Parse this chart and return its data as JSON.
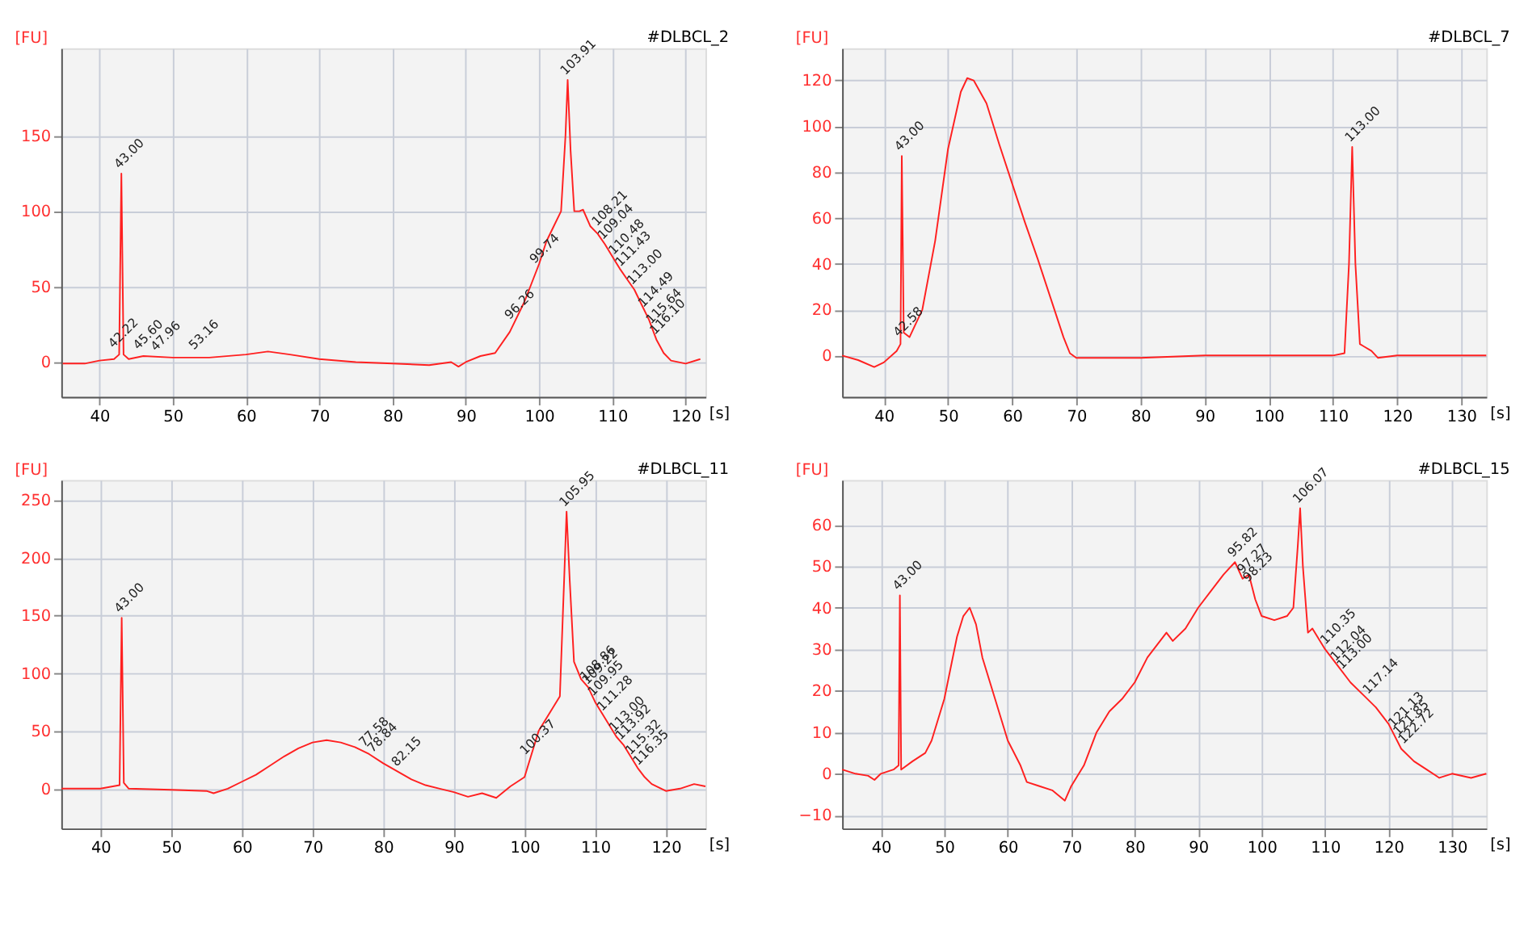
{
  "chart_data": [
    {
      "type": "line",
      "title": "#DLBCL_2",
      "xlabel": "[s]",
      "ylabel": "[FU]",
      "xlim": [
        34.8,
        122.7
      ],
      "ylim": [
        -23,
        208
      ],
      "xticks": [
        40,
        50,
        60,
        70,
        80,
        90,
        100,
        110,
        120
      ],
      "yticks": [
        0,
        50,
        100,
        150
      ],
      "grid": true,
      "x": [
        35,
        38,
        40,
        42,
        42.7,
        43,
        43.3,
        44,
        46,
        50,
        55,
        60,
        63,
        66,
        70,
        75,
        80,
        85,
        88,
        89,
        90,
        92,
        94,
        96,
        98,
        100,
        101,
        102,
        103,
        103.6,
        103.9,
        104.3,
        104.8,
        105.5,
        106,
        107,
        108,
        109,
        110,
        111,
        112,
        113,
        114,
        115,
        116,
        117,
        118,
        120,
        122
      ],
      "series": [
        {
          "color": "#ff2020",
          "values": [
            -1,
            -1,
            1,
            2,
            5,
            125,
            5,
            2,
            4,
            3,
            3,
            5,
            7,
            5,
            2,
            0,
            -1,
            -2,
            0,
            -3,
            0,
            4,
            6,
            20,
            40,
            65,
            80,
            90,
            100,
            150,
            187,
            140,
            100,
            100,
            101,
            90,
            85,
            78,
            70,
            62,
            55,
            48,
            38,
            28,
            15,
            6,
            1,
            -1,
            2
          ]
        }
      ],
      "annotations": [
        {
          "text": "43.00",
          "x": 43,
          "y": 125
        },
        {
          "text": "42.22",
          "x": 42.2,
          "y": 6
        },
        {
          "text": "45.60",
          "x": 45.6,
          "y": 5
        },
        {
          "text": "47.96",
          "x": 48,
          "y": 4
        },
        {
          "text": "53.16",
          "x": 53.2,
          "y": 5
        },
        {
          "text": "96.26",
          "x": 96.3,
          "y": 25
        },
        {
          "text": "99.74",
          "x": 99.7,
          "y": 62
        },
        {
          "text": "103.91",
          "x": 103.9,
          "y": 187
        },
        {
          "text": "108.21",
          "x": 108.2,
          "y": 87
        },
        {
          "text": "109.04",
          "x": 109,
          "y": 78
        },
        {
          "text": "110.48",
          "x": 110.5,
          "y": 68
        },
        {
          "text": "111.43",
          "x": 111.4,
          "y": 60
        },
        {
          "text": "113.00",
          "x": 113,
          "y": 48
        },
        {
          "text": "114.49",
          "x": 114.5,
          "y": 33
        },
        {
          "text": "115.64",
          "x": 115.6,
          "y": 22
        },
        {
          "text": "116.10",
          "x": 116.1,
          "y": 15
        }
      ]
    },
    {
      "type": "line",
      "title": "#DLBCL_7",
      "xlabel": "[s]",
      "ylabel": "[FU]",
      "xlim": [
        33.5,
        133.9
      ],
      "ylim": [
        -18,
        134
      ],
      "xticks": [
        40,
        50,
        60,
        70,
        80,
        90,
        100,
        110,
        120,
        130
      ],
      "yticks": [
        0,
        20,
        40,
        60,
        80,
        100,
        120
      ],
      "grid": true,
      "x": [
        33.5,
        36,
        38.5,
        40,
        42,
        42.6,
        42.8,
        43.1,
        44,
        46,
        48,
        50,
        52,
        53,
        54,
        56,
        58,
        60,
        62,
        64,
        66,
        68,
        69,
        70,
        80,
        90,
        100,
        110,
        111.8,
        112.5,
        113,
        113.5,
        114.2,
        114.8,
        116,
        117,
        120,
        130,
        133.9
      ],
      "series": [
        {
          "color": "#ff2020",
          "values": [
            0,
            -2,
            -5,
            -3,
            2,
            5,
            87,
            10,
            8,
            20,
            50,
            90,
            115,
            121,
            120,
            110,
            92,
            75,
            58,
            42,
            25,
            8,
            1,
            -1,
            -1,
            0,
            0,
            0,
            1,
            40,
            91,
            40,
            5,
            4,
            2,
            -1,
            0,
            0,
            0
          ]
        }
      ],
      "annotations": [
        {
          "text": "43.00",
          "x": 42.8,
          "y": 87
        },
        {
          "text": "42.58",
          "x": 42.6,
          "y": 6
        },
        {
          "text": "113.00",
          "x": 113,
          "y": 91
        }
      ]
    },
    {
      "type": "line",
      "title": "#DLBCL_11",
      "xlabel": "[s]",
      "ylabel": "[FU]",
      "xlim": [
        34.45,
        125.6
      ],
      "ylim": [
        -34.5,
        267.5
      ],
      "xticks": [
        40,
        50,
        60,
        70,
        80,
        90,
        100,
        110,
        120
      ],
      "yticks": [
        0,
        50,
        100,
        150,
        200,
        250
      ],
      "grid": true,
      "x": [
        34.5,
        40,
        42.7,
        43,
        43.3,
        44,
        50,
        55,
        56,
        58,
        60,
        62,
        64,
        66,
        68,
        70,
        72,
        74,
        76,
        78,
        80,
        82,
        84,
        86,
        88,
        90,
        92,
        94,
        96,
        98,
        100,
        101,
        102,
        104,
        105,
        105.6,
        105.95,
        106.4,
        107,
        108,
        109,
        110,
        111,
        112,
        113,
        114,
        115,
        116,
        117,
        118,
        120,
        122,
        124,
        125.6
      ],
      "series": [
        {
          "color": "#ff2020",
          "values": [
            0,
            0,
            3,
            148,
            5,
            0,
            -1,
            -2,
            -4,
            0,
            6,
            12,
            20,
            28,
            35,
            40,
            42,
            40,
            36,
            30,
            22,
            15,
            8,
            3,
            0,
            -3,
            -7,
            -4,
            -8,
            2,
            10,
            30,
            50,
            70,
            80,
            180,
            240,
            180,
            110,
            95,
            88,
            75,
            65,
            55,
            45,
            38,
            28,
            18,
            10,
            4,
            -2,
            0,
            4,
            2
          ]
        }
      ],
      "annotations": [
        {
          "text": "43.00",
          "x": 43,
          "y": 148
        },
        {
          "text": "77.58",
          "x": 77.6,
          "y": 32
        },
        {
          "text": "78.84",
          "x": 78.8,
          "y": 27
        },
        {
          "text": "82.15",
          "x": 82.2,
          "y": 15
        },
        {
          "text": "100.37",
          "x": 100.4,
          "y": 25
        },
        {
          "text": "105.95",
          "x": 105.95,
          "y": 240
        },
        {
          "text": "108.86",
          "x": 108.9,
          "y": 89
        },
        {
          "text": "109.22",
          "x": 109.2,
          "y": 86
        },
        {
          "text": "109.95",
          "x": 110,
          "y": 76
        },
        {
          "text": "111.28",
          "x": 111.3,
          "y": 63
        },
        {
          "text": "113.00",
          "x": 113,
          "y": 45
        },
        {
          "text": "113.92",
          "x": 113.9,
          "y": 38
        },
        {
          "text": "115.32",
          "x": 115.3,
          "y": 25
        },
        {
          "text": "116.35",
          "x": 116.4,
          "y": 16
        }
      ]
    },
    {
      "type": "line",
      "title": "#DLBCL_15",
      "xlabel": "[s]",
      "ylabel": "[FU]",
      "xlim": [
        33.9,
        135.4
      ],
      "ylim": [
        -13.2,
        70.8
      ],
      "xticks": [
        40,
        50,
        60,
        70,
        80,
        90,
        100,
        110,
        120,
        130
      ],
      "yticks": [
        -10,
        0,
        10,
        20,
        30,
        40,
        50,
        60
      ],
      "grid": true,
      "x": [
        33.9,
        36,
        38,
        39,
        40,
        42,
        42.8,
        43,
        43.2,
        45,
        47,
        48,
        50,
        52,
        53,
        54,
        55,
        56,
        58,
        60,
        62,
        63,
        65,
        67,
        69,
        70,
        72,
        74,
        76,
        78,
        80,
        82,
        84,
        85,
        86,
        88,
        90,
        92,
        94,
        95.8,
        97,
        98,
        99,
        100,
        102,
        104,
        105,
        105.7,
        106.07,
        106.5,
        107.3,
        108,
        110,
        112,
        114,
        116,
        118,
        120,
        122,
        124,
        126,
        128,
        130,
        133,
        135.4
      ],
      "series": [
        {
          "color": "#ff2020",
          "values": [
            1,
            0,
            -0.5,
            -1.5,
            0,
            1,
            2,
            43,
            1,
            3,
            5,
            8,
            18,
            33,
            38,
            40,
            36,
            28,
            18,
            8,
            2,
            -2,
            -3,
            -4,
            -6.5,
            -3,
            2,
            10,
            15,
            18,
            22,
            28,
            32,
            34,
            32,
            35,
            40,
            44,
            48,
            51,
            47,
            48,
            42,
            38,
            37,
            38,
            40,
            55,
            64,
            50,
            34,
            35,
            30,
            26,
            22,
            19,
            16,
            12,
            6,
            3,
            1,
            -1,
            0,
            -1,
            0
          ]
        }
      ],
      "annotations": [
        {
          "text": "43.00",
          "x": 43,
          "y": 43
        },
        {
          "text": "95.82",
          "x": 95.8,
          "y": 51
        },
        {
          "text": "97.27",
          "x": 97.3,
          "y": 47
        },
        {
          "text": "98.23",
          "x": 98.2,
          "y": 45
        },
        {
          "text": "106.07",
          "x": 106.07,
          "y": 64
        },
        {
          "text": "110.35",
          "x": 110.4,
          "y": 30
        },
        {
          "text": "112.04",
          "x": 112,
          "y": 26
        },
        {
          "text": "113.00",
          "x": 113,
          "y": 24
        },
        {
          "text": "117.14",
          "x": 117.1,
          "y": 18
        },
        {
          "text": "121.13",
          "x": 121.1,
          "y": 10
        },
        {
          "text": "121.85",
          "x": 121.9,
          "y": 8
        },
        {
          "text": "122.72",
          "x": 122.7,
          "y": 6
        }
      ]
    }
  ]
}
